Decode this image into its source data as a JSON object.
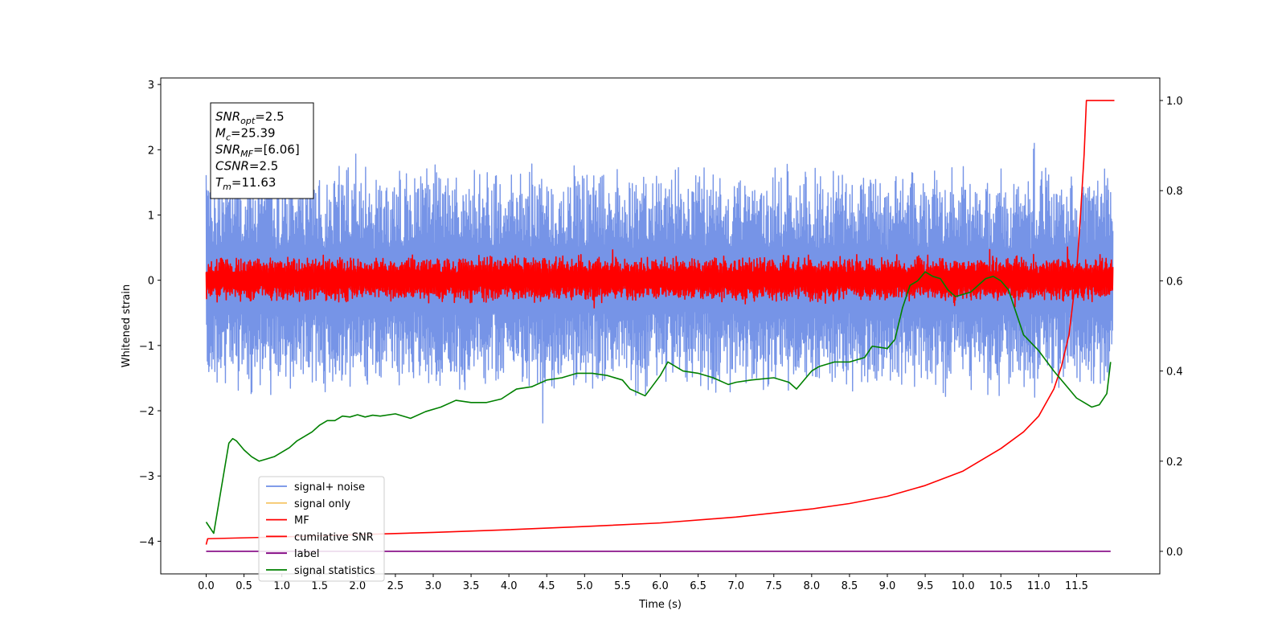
{
  "chart_data": {
    "type": "line",
    "xlabel": "Time (s)",
    "ylabel": "Whitened strain",
    "xlim": [
      -0.6,
      12.6
    ],
    "ylim_left": [
      -4.5,
      3.1
    ],
    "ylim_right": [
      -0.05,
      1.05
    ],
    "x_ticks": [
      0.0,
      0.5,
      1.0,
      1.5,
      2.0,
      2.5,
      3.0,
      3.5,
      4.0,
      4.5,
      5.0,
      5.5,
      6.0,
      6.5,
      7.0,
      7.5,
      8.0,
      8.5,
      9.0,
      9.5,
      10.0,
      10.5,
      11.0,
      11.5
    ],
    "x_tick_labels": [
      "0.0",
      "0.5",
      "1.0",
      "1.5",
      "2.0",
      "2.5",
      "3.0",
      "3.5",
      "4.0",
      "4.5",
      "5.0",
      "5.5",
      "6.0",
      "6.5",
      "7.0",
      "7.5",
      "8.0",
      "8.5",
      "9.0",
      "9.5",
      "10.0",
      "10.5",
      "11.0",
      "11.5"
    ],
    "y_left_ticks": [
      -4,
      -3,
      -2,
      -1,
      0,
      1,
      2,
      3
    ],
    "y_left_tick_labels": [
      "−4",
      "−3",
      "−2",
      "−1",
      "0",
      "1",
      "2",
      "3"
    ],
    "y_right_ticks": [
      0.0,
      0.2,
      0.4,
      0.6,
      0.8,
      1.0
    ],
    "y_right_tick_labels": [
      "0.0",
      "0.2",
      "0.4",
      "0.6",
      "0.8",
      "1.0"
    ],
    "grid": false,
    "legend_position": "lower-left",
    "info_box": {
      "lines": [
        {
          "base": "SNR",
          "sub": "opt",
          "value": "=2.5"
        },
        {
          "base": "M",
          "sub": "c",
          "value": "=25.39"
        },
        {
          "base": "SNR",
          "sub": "MF",
          "value": "=[6.06]"
        },
        {
          "base": "CSNR",
          "sub": "",
          "value": "=2.5"
        },
        {
          "base": "T",
          "sub": "m",
          "value": "=11.63"
        }
      ]
    },
    "series": [
      {
        "name": "signal+ noise",
        "axis": "left",
        "color": "#6f8ee6",
        "kind": "noise",
        "band_low": [
          -1.8,
          -1.3
        ],
        "band_high": [
          1.3,
          1.8
        ],
        "x_range": [
          0.0,
          11.98
        ]
      },
      {
        "name": "signal only",
        "axis": "left",
        "color": "#f5c76a",
        "kind": "flat",
        "value": 0.0,
        "x_range": [
          0.0,
          11.98
        ]
      },
      {
        "name": "MF",
        "axis": "left",
        "color": "#ff0000",
        "kind": "noise",
        "band_low": [
          -0.35,
          -0.2
        ],
        "band_high": [
          0.25,
          0.4
        ],
        "x_range": [
          0.0,
          11.98
        ]
      },
      {
        "name": "cumilative SNR",
        "axis": "right",
        "color": "#ff0000",
        "kind": "curve",
        "x": [
          0.0,
          0.02,
          1.0,
          2.0,
          3.0,
          4.0,
          5.0,
          6.0,
          7.0,
          8.0,
          8.5,
          9.0,
          9.5,
          10.0,
          10.5,
          10.8,
          11.0,
          11.2,
          11.3,
          11.4,
          11.5,
          11.55,
          11.6,
          11.63,
          11.7,
          12.0
        ],
        "y": [
          0.015,
          0.028,
          0.032,
          0.037,
          0.042,
          0.048,
          0.055,
          0.063,
          0.076,
          0.094,
          0.106,
          0.122,
          0.146,
          0.178,
          0.228,
          0.265,
          0.3,
          0.36,
          0.41,
          0.48,
          0.62,
          0.74,
          0.88,
          1.0,
          1.0,
          1.0
        ]
      },
      {
        "name": "label",
        "axis": "right",
        "color": "#800080",
        "kind": "flat",
        "value": 0.0,
        "x_range": [
          0.0,
          11.95
        ]
      },
      {
        "name": "signal statistics",
        "axis": "right",
        "color": "#008000",
        "kind": "curve",
        "x": [
          0.0,
          0.1,
          0.2,
          0.3,
          0.35,
          0.4,
          0.5,
          0.6,
          0.7,
          0.8,
          0.9,
          1.0,
          1.1,
          1.2,
          1.3,
          1.4,
          1.5,
          1.6,
          1.7,
          1.8,
          1.9,
          2.0,
          2.1,
          2.2,
          2.3,
          2.5,
          2.7,
          2.9,
          3.1,
          3.3,
          3.5,
          3.7,
          3.9,
          4.1,
          4.3,
          4.5,
          4.7,
          4.9,
          5.1,
          5.3,
          5.5,
          5.6,
          5.8,
          6.0,
          6.1,
          6.3,
          6.5,
          6.7,
          6.9,
          7.0,
          7.2,
          7.5,
          7.7,
          7.8,
          8.0,
          8.1,
          8.3,
          8.5,
          8.7,
          8.8,
          9.0,
          9.1,
          9.2,
          9.3,
          9.4,
          9.5,
          9.6,
          9.7,
          9.8,
          9.9,
          10.0,
          10.1,
          10.2,
          10.3,
          10.4,
          10.5,
          10.6,
          10.7,
          10.8,
          11.0,
          11.2,
          11.4,
          11.5,
          11.6,
          11.7,
          11.8,
          11.9,
          11.95
        ],
        "y": [
          0.065,
          0.04,
          0.14,
          0.24,
          0.25,
          0.245,
          0.225,
          0.21,
          0.2,
          0.205,
          0.21,
          0.22,
          0.23,
          0.245,
          0.255,
          0.265,
          0.28,
          0.29,
          0.29,
          0.3,
          0.298,
          0.303,
          0.298,
          0.302,
          0.3,
          0.305,
          0.295,
          0.31,
          0.32,
          0.335,
          0.33,
          0.33,
          0.338,
          0.36,
          0.365,
          0.38,
          0.385,
          0.395,
          0.395,
          0.39,
          0.38,
          0.36,
          0.345,
          0.39,
          0.42,
          0.4,
          0.395,
          0.385,
          0.37,
          0.375,
          0.38,
          0.385,
          0.375,
          0.36,
          0.4,
          0.41,
          0.42,
          0.42,
          0.43,
          0.455,
          0.45,
          0.47,
          0.54,
          0.59,
          0.6,
          0.62,
          0.61,
          0.605,
          0.58,
          0.565,
          0.57,
          0.575,
          0.59,
          0.605,
          0.61,
          0.6,
          0.58,
          0.53,
          0.48,
          0.445,
          0.4,
          0.36,
          0.34,
          0.33,
          0.32,
          0.325,
          0.35,
          0.42
        ]
      }
    ]
  }
}
